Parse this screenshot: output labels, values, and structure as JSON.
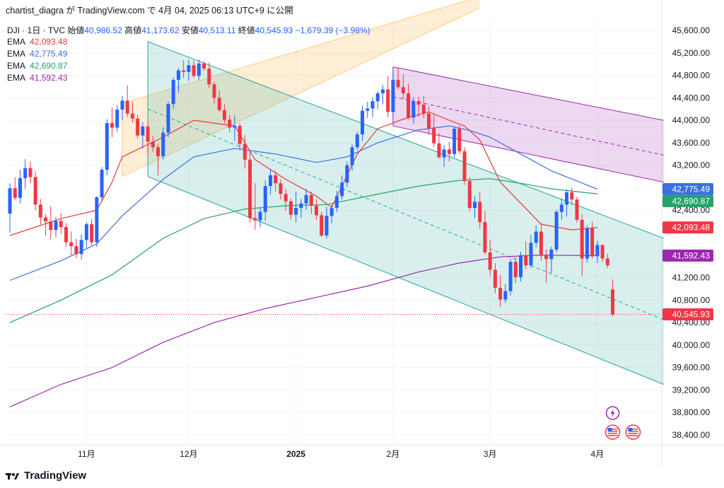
{
  "header": {
    "text": "chartist_diagra が TradingView.com で 4月 04, 2025 06:13 UTC+9 に公開"
  },
  "ohlc": {
    "symbol": "DJI · 1日 · TVC",
    "open_label": "始値",
    "open": "40,986.52",
    "high_label": "高値",
    "high": "41,173.62",
    "low_label": "安値",
    "low": "40,513.11",
    "close_label": "終値",
    "close": "40,545.93",
    "change": "−1,679.39 (−3.98%)"
  },
  "emas": [
    {
      "label": "EMA",
      "value": "42,093.48",
      "color": "#e53935"
    },
    {
      "label": "EMA",
      "value": "42,775.49",
      "color": "#3b6fe0"
    },
    {
      "label": "EMA",
      "value": "42,690.87",
      "color": "#26a269"
    },
    {
      "label": "EMA",
      "value": "41,592.43",
      "color": "#9c27b0"
    }
  ],
  "footer": {
    "logo_text": "TradingView"
  },
  "chart_data": {
    "type": "candlestick",
    "ylim": [
      38100,
      45800
    ],
    "y_ticks": [
      {
        "v": 45600,
        "t": "45,600.00"
      },
      {
        "v": 45200,
        "t": "45,200.00"
      },
      {
        "v": 44800,
        "t": "44,800.00"
      },
      {
        "v": 44400,
        "t": "44,400.00"
      },
      {
        "v": 44000,
        "t": "44,000.00"
      },
      {
        "v": 43600,
        "t": "43,600.00"
      },
      {
        "v": 43200,
        "t": "43,200.00"
      },
      {
        "v": 42400,
        "t": "42,400.00"
      },
      {
        "v": 41200,
        "t": "41,200.00"
      },
      {
        "v": 40800,
        "t": "40,800.00"
      },
      {
        "v": 40400,
        "t": "40,400.00"
      },
      {
        "v": 40000,
        "t": "40,000.00"
      },
      {
        "v": 39600,
        "t": "39,600.00"
      },
      {
        "v": 39200,
        "t": "39,200.00"
      },
      {
        "v": 38800,
        "t": "38,800.00"
      },
      {
        "v": 38400,
        "t": "38,400.00"
      }
    ],
    "x_ticks": [
      {
        "i": 15,
        "t": "11月",
        "bold": false
      },
      {
        "i": 35,
        "t": "12月",
        "bold": false
      },
      {
        "i": 56,
        "t": "2025",
        "bold": true
      },
      {
        "i": 75,
        "t": "2月",
        "bold": false
      },
      {
        "i": 94,
        "t": "3月",
        "bold": false
      },
      {
        "i": 115,
        "t": "4月",
        "bold": false
      }
    ],
    "price_tags": [
      {
        "v": 42775.49,
        "t": "42,775.49",
        "color": "#3b6fe0"
      },
      {
        "v": 42690.87,
        "t": "42,690.87",
        "color": "#26a269"
      },
      {
        "v": 42093.48,
        "t": "42,093.48",
        "color": "#f23645"
      },
      {
        "v": 41592.43,
        "t": "41,592.43",
        "color": "#9c27b0"
      },
      {
        "v": 40545.93,
        "t": "40,545.93",
        "color": "#f23645"
      }
    ],
    "last_price": 40545.93,
    "candles": [
      [
        42340,
        42880,
        42000,
        42790
      ],
      [
        42790,
        42990,
        42580,
        42620
      ],
      [
        42620,
        43120,
        42520,
        42970
      ],
      [
        42970,
        43310,
        42780,
        43150
      ],
      [
        43150,
        43270,
        42880,
        42990
      ],
      [
        42990,
        43090,
        42400,
        42500
      ],
      [
        42500,
        42600,
        42150,
        42270
      ],
      [
        42270,
        42330,
        41950,
        42200
      ],
      [
        42200,
        42470,
        41880,
        42050
      ],
      [
        42050,
        42280,
        41920,
        42210
      ],
      [
        42210,
        42350,
        41980,
        42100
      ],
      [
        42100,
        42170,
        41750,
        41830
      ],
      [
        41830,
        42020,
        41600,
        41760
      ],
      [
        41760,
        41890,
        41550,
        41620
      ],
      [
        41620,
        41970,
        41520,
        41870
      ],
      [
        41870,
        42190,
        41730,
        42150
      ],
      [
        42150,
        42240,
        41770,
        41830
      ],
      [
        41830,
        42650,
        41750,
        42630
      ],
      [
        42630,
        43170,
        42560,
        43120
      ],
      [
        43120,
        44020,
        43020,
        43950
      ],
      [
        43950,
        44230,
        43700,
        43870
      ],
      [
        43870,
        44270,
        43800,
        44190
      ],
      [
        44190,
        44430,
        44000,
        44350
      ],
      [
        44350,
        44620,
        44060,
        44120
      ],
      [
        44120,
        44330,
        43960,
        44030
      ],
      [
        44030,
        44100,
        43680,
        43730
      ],
      [
        43730,
        43970,
        43500,
        43890
      ],
      [
        43890,
        43980,
        43400,
        43620
      ],
      [
        43620,
        43720,
        43440,
        43520
      ],
      [
        43520,
        43580,
        43020,
        43360
      ],
      [
        43360,
        43880,
        43300,
        43780
      ],
      [
        43780,
        44330,
        43700,
        44290
      ],
      [
        44290,
        44760,
        44200,
        44720
      ],
      [
        44720,
        44930,
        44490,
        44890
      ],
      [
        44890,
        45070,
        44750,
        44860
      ],
      [
        44860,
        45080,
        44700,
        44980
      ],
      [
        44980,
        45070,
        44750,
        44790
      ],
      [
        44790,
        45080,
        44720,
        45010
      ],
      [
        45010,
        45050,
        44880,
        44920
      ],
      [
        44920,
        45030,
        44580,
        44640
      ],
      [
        44640,
        44680,
        44300,
        44400
      ],
      [
        44400,
        44530,
        44150,
        44180
      ],
      [
        44180,
        44290,
        43950,
        44010
      ],
      [
        44010,
        44090,
        43790,
        43870
      ],
      [
        43870,
        44090,
        43630,
        43900
      ],
      [
        43900,
        43950,
        43470,
        43580
      ],
      [
        43580,
        43740,
        43140,
        43300
      ],
      [
        43300,
        43470,
        42180,
        42260
      ],
      [
        42260,
        42880,
        42050,
        42220
      ],
      [
        42220,
        42460,
        42100,
        42370
      ],
      [
        42370,
        42930,
        42210,
        42830
      ],
      [
        42830,
        43130,
        42680,
        43020
      ],
      [
        43020,
        43100,
        42730,
        42880
      ],
      [
        42880,
        42950,
        42590,
        42690
      ],
      [
        42690,
        42780,
        42390,
        42560
      ],
      [
        42560,
        42610,
        42240,
        42320
      ],
      [
        42320,
        42730,
        42180,
        42440
      ],
      [
        42440,
        42600,
        42260,
        42520
      ],
      [
        42520,
        42780,
        42410,
        42670
      ],
      [
        42670,
        42730,
        42330,
        42480
      ],
      [
        42480,
        42600,
        42230,
        42310
      ],
      [
        42310,
        42370,
        41920,
        41950
      ],
      [
        41950,
        42460,
        41900,
        42300
      ],
      [
        42300,
        42490,
        42170,
        42440
      ],
      [
        42440,
        42740,
        42370,
        42650
      ],
      [
        42650,
        43020,
        42590,
        42890
      ],
      [
        42890,
        43270,
        42810,
        43200
      ],
      [
        43200,
        43570,
        43100,
        43520
      ],
      [
        43520,
        43800,
        43470,
        43750
      ],
      [
        43750,
        44260,
        43630,
        44170
      ],
      [
        44170,
        44330,
        44040,
        44210
      ],
      [
        44210,
        44410,
        44050,
        44340
      ],
      [
        44340,
        44520,
        44200,
        44480
      ],
      [
        44480,
        44630,
        44290,
        44550
      ],
      [
        44550,
        44790,
        44050,
        44150
      ],
      [
        44150,
        44850,
        44080,
        44720
      ],
      [
        44720,
        44930,
        44550,
        44590
      ],
      [
        44590,
        44820,
        44380,
        44480
      ],
      [
        44480,
        44650,
        44010,
        44050
      ],
      [
        44050,
        44410,
        43940,
        44340
      ],
      [
        44340,
        44420,
        44060,
        44280
      ],
      [
        44280,
        44440,
        44040,
        44120
      ],
      [
        44120,
        44250,
        43750,
        43860
      ],
      [
        43860,
        44100,
        43530,
        43590
      ],
      [
        43590,
        43770,
        43330,
        43340
      ],
      [
        43340,
        43560,
        43170,
        43480
      ],
      [
        43480,
        43620,
        43270,
        43400
      ],
      [
        43400,
        43890,
        43340,
        43850
      ],
      [
        43850,
        43910,
        43400,
        43450
      ],
      [
        43450,
        43520,
        42850,
        42920
      ],
      [
        42920,
        42990,
        42380,
        42440
      ],
      [
        42440,
        42650,
        42260,
        42550
      ],
      [
        42550,
        42720,
        42070,
        42190
      ],
      [
        42190,
        42380,
        41610,
        41650
      ],
      [
        41650,
        41870,
        41230,
        41340
      ],
      [
        41340,
        41460,
        40920,
        41020
      ],
      [
        41020,
        41240,
        40680,
        40810
      ],
      [
        40810,
        41080,
        40750,
        40960
      ],
      [
        40960,
        41530,
        40880,
        41480
      ],
      [
        41480,
        41560,
        41100,
        41210
      ],
      [
        41210,
        41660,
        41130,
        41600
      ],
      [
        41600,
        41850,
        41350,
        41420
      ],
      [
        41420,
        41960,
        41370,
        41820
      ],
      [
        41820,
        42130,
        41740,
        42020
      ],
      [
        42020,
        42170,
        41500,
        41590
      ],
      [
        41590,
        41700,
        41100,
        41530
      ],
      [
        41530,
        41750,
        41280,
        41700
      ],
      [
        41700,
        42400,
        41650,
        42370
      ],
      [
        42370,
        42610,
        42230,
        42500
      ],
      [
        42500,
        42770,
        42290,
        42720
      ],
      [
        42720,
        42800,
        42490,
        42590
      ],
      [
        42590,
        42640,
        42180,
        42230
      ],
      [
        42230,
        42330,
        41230,
        41540
      ],
      [
        41540,
        42130,
        41470,
        42080
      ],
      [
        42080,
        42200,
        41540,
        41580
      ],
      [
        41580,
        41860,
        41460,
        41780
      ],
      [
        41780,
        41790,
        41480,
        41540
      ],
      [
        41540,
        41620,
        41370,
        41420
      ],
      [
        40990,
        41170,
        40510,
        40546
      ]
    ],
    "ema_series": [
      {
        "name": "EMA 42,093.48",
        "color": "#e53935",
        "points": [
          [
            0,
            41950
          ],
          [
            10,
            42250
          ],
          [
            17,
            42400
          ],
          [
            20,
            42900
          ],
          [
            22,
            43350
          ],
          [
            30,
            43700
          ],
          [
            36,
            44000
          ],
          [
            44,
            43900
          ],
          [
            48,
            43300
          ],
          [
            54,
            42950
          ],
          [
            60,
            42650
          ],
          [
            63,
            42450
          ],
          [
            68,
            43400
          ],
          [
            72,
            43850
          ],
          [
            77,
            44020
          ],
          [
            82,
            44150
          ],
          [
            86,
            44000
          ],
          [
            89,
            43900
          ],
          [
            92,
            43650
          ],
          [
            96,
            42900
          ],
          [
            104,
            42150
          ],
          [
            110,
            42050
          ],
          [
            115,
            42093
          ]
        ]
      },
      {
        "name": "EMA 42,775.49",
        "color": "#3b6fe0",
        "points": [
          [
            0,
            41150
          ],
          [
            10,
            41500
          ],
          [
            17,
            41800
          ],
          [
            22,
            42300
          ],
          [
            30,
            42950
          ],
          [
            36,
            43350
          ],
          [
            44,
            43500
          ],
          [
            52,
            43400
          ],
          [
            60,
            43250
          ],
          [
            66,
            43350
          ],
          [
            72,
            43600
          ],
          [
            80,
            43830
          ],
          [
            86,
            43900
          ],
          [
            90,
            43820
          ],
          [
            94,
            43700
          ],
          [
            100,
            43400
          ],
          [
            106,
            43100
          ],
          [
            115,
            42775
          ]
        ]
      },
      {
        "name": "EMA 42,690.87",
        "color": "#26a269",
        "points": [
          [
            0,
            40400
          ],
          [
            10,
            40800
          ],
          [
            20,
            41250
          ],
          [
            30,
            41900
          ],
          [
            38,
            42250
          ],
          [
            46,
            42420
          ],
          [
            54,
            42480
          ],
          [
            62,
            42500
          ],
          [
            70,
            42650
          ],
          [
            80,
            42830
          ],
          [
            88,
            42930
          ],
          [
            94,
            42960
          ],
          [
            100,
            42880
          ],
          [
            106,
            42780
          ],
          [
            115,
            42691
          ]
        ]
      },
      {
        "name": "EMA 41,592.43",
        "color": "#9c27b0",
        "points": [
          [
            0,
            38900
          ],
          [
            10,
            39300
          ],
          [
            20,
            39600
          ],
          [
            30,
            40050
          ],
          [
            40,
            40400
          ],
          [
            50,
            40650
          ],
          [
            60,
            40850
          ],
          [
            70,
            41050
          ],
          [
            80,
            41300
          ],
          [
            88,
            41460
          ],
          [
            96,
            41570
          ],
          [
            104,
            41600
          ],
          [
            115,
            41592
          ]
        ]
      }
    ],
    "channels": [
      {
        "name": "orange-channel",
        "fill": "#ff9800",
        "fill_opacity": 0.16,
        "stroke": "#ffcc80",
        "upper": [
          [
            22,
            44300
          ],
          [
            92,
            46200
          ]
        ],
        "lower": [
          [
            22,
            43000
          ],
          [
            92,
            46000
          ]
        ],
        "mid": null
      },
      {
        "name": "green-channel",
        "fill": "#26a69a",
        "fill_opacity": 0.18,
        "stroke": "#26a69a",
        "upper": [
          [
            27,
            45400
          ],
          [
            128,
            41900
          ]
        ],
        "lower": [
          [
            27,
            43000
          ],
          [
            128,
            39300
          ]
        ],
        "mid": [
          [
            27,
            44200
          ],
          [
            128,
            40450
          ]
        ]
      },
      {
        "name": "purple-channel",
        "fill": "#9c27b0",
        "fill_opacity": 0.18,
        "stroke": "#9c27b0",
        "upper": [
          [
            75,
            44950
          ],
          [
            128,
            44000
          ]
        ],
        "lower": [
          [
            75,
            43900
          ],
          [
            128,
            42900
          ]
        ],
        "mid": [
          [
            75,
            44420
          ],
          [
            128,
            43380
          ]
        ]
      }
    ],
    "markers": [
      {
        "i": 118,
        "v": 38790,
        "kind": "lightning",
        "color": "#9c27b0"
      },
      {
        "i": 118,
        "v": 38450,
        "kind": "us-flag",
        "color": "#f23645"
      },
      {
        "i": 122,
        "v": 38450,
        "kind": "us-flag",
        "color": "#f23645"
      }
    ]
  }
}
